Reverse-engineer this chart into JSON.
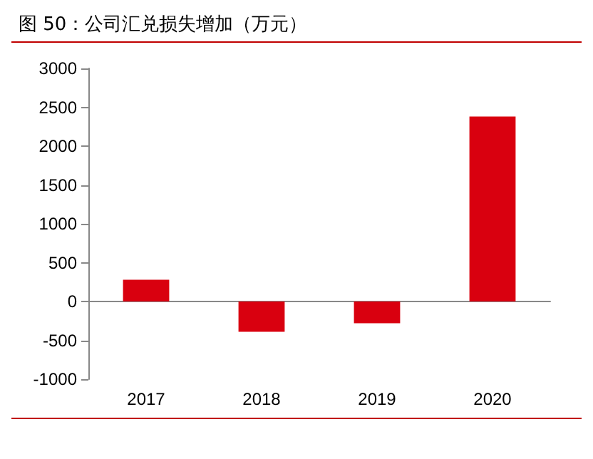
{
  "chart_data": {
    "type": "bar",
    "title": "图 50：公司汇兑损失增加（万元）",
    "categories": [
      "2017",
      "2018",
      "2019",
      "2020"
    ],
    "values": [
      280,
      -390,
      -280,
      2380
    ],
    "color": "#d9000f",
    "ylim": [
      -1000,
      3000
    ],
    "yticks": [
      -1000,
      -500,
      0,
      500,
      1000,
      1500,
      2000,
      2500,
      3000
    ]
  }
}
